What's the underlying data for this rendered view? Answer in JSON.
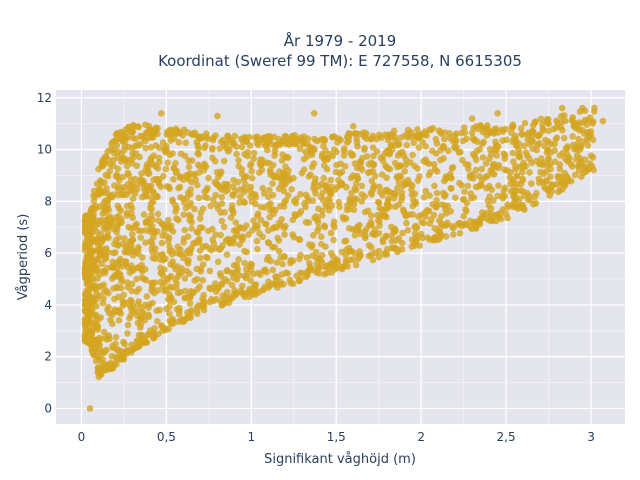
{
  "chart_data": {
    "type": "scatter",
    "title_line1": "År 1979 - 2019",
    "title_line2": "Koordinat (Sweref 99 TM): E 727558, N 6615305",
    "xlabel": "Signifikant våghöjd (m)",
    "ylabel": "Vågperiod (s)",
    "xlim": [
      -0.15,
      3.2
    ],
    "ylim": [
      -0.6,
      12.3
    ],
    "x_ticks": [
      0,
      0.5,
      1,
      1.5,
      2,
      2.5,
      3
    ],
    "x_tick_labels": [
      "0",
      "0,5",
      "1",
      "1,5",
      "2",
      "2,5",
      "3"
    ],
    "y_ticks": [
      0,
      2,
      4,
      6,
      8,
      10,
      12
    ],
    "y_tick_labels": [
      "0",
      "2",
      "4",
      "6",
      "8",
      "10",
      "12"
    ],
    "grid": true,
    "legend": "none",
    "marker_color": "#d4a520",
    "plot_bg": "#e5e5ee",
    "envelope_x": [
      0.05,
      0.1,
      0.2,
      0.3,
      0.5,
      0.75,
      1.0,
      1.5,
      2.0,
      2.5,
      2.8,
      3.0
    ],
    "envelope_upper": [
      7.5,
      9.3,
      10.6,
      11.0,
      10.9,
      10.6,
      10.5,
      10.6,
      10.8,
      11.0,
      11.3,
      11.6
    ],
    "envelope_lower": [
      2.5,
      1.2,
      1.6,
      2.2,
      3.0,
      3.8,
      4.3,
      5.3,
      6.3,
      7.3,
      8.3,
      9.2
    ],
    "outliers": [
      {
        "x": 0.05,
        "y": 0.0
      },
      {
        "x": 0.47,
        "y": 11.4
      },
      {
        "x": 1.37,
        "y": 11.4
      },
      {
        "x": 2.95,
        "y": 11.6
      },
      {
        "x": 3.02,
        "y": 11.6
      },
      {
        "x": 2.83,
        "y": 11.6
      },
      {
        "x": 3.07,
        "y": 11.1
      },
      {
        "x": 2.75,
        "y": 11.0
      },
      {
        "x": 2.45,
        "y": 11.4
      },
      {
        "x": 0.8,
        "y": 11.3
      },
      {
        "x": 1.6,
        "y": 10.9
      },
      {
        "x": 2.3,
        "y": 11.2
      },
      {
        "x": 2.9,
        "y": 10.9
      },
      {
        "x": 3.0,
        "y": 10.7
      }
    ]
  }
}
